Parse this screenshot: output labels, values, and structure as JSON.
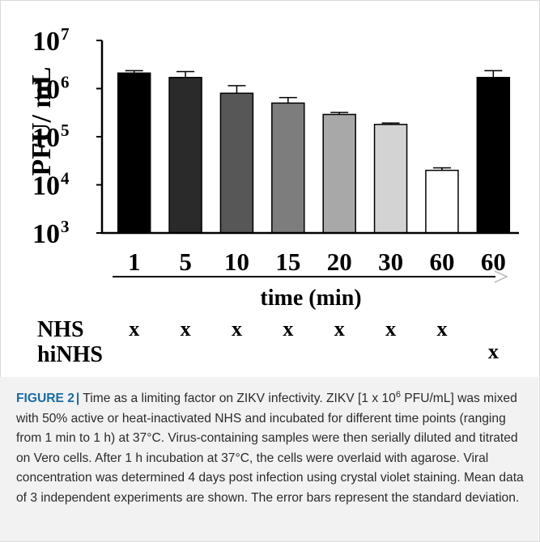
{
  "chart_data": {
    "type": "bar",
    "categories": [
      "1",
      "5",
      "10",
      "15",
      "20",
      "30",
      "60",
      "60"
    ],
    "values": [
      2100000,
      1700000,
      800000,
      500000,
      290000,
      180000,
      20000,
      1700000
    ],
    "errors": [
      250000,
      550000,
      350000,
      150000,
      30000,
      12000,
      2500,
      650000
    ],
    "bar_colors": [
      "#000000",
      "#2a2a2a",
      "#575757",
      "#7d7d7d",
      "#a8a8a8",
      "#d3d3d3",
      "#ffffff",
      "#000000"
    ],
    "scale": "log",
    "ylim": [
      1000,
      10000000
    ],
    "ylabel": "PFU/ mL",
    "xlabel": "time (min)",
    "yticks": [
      {
        "base": "10",
        "exp": "7"
      },
      {
        "base": "10",
        "exp": "6"
      },
      {
        "base": "10",
        "exp": "5"
      },
      {
        "base": "10",
        "exp": "4"
      },
      {
        "base": "10",
        "exp": "3"
      }
    ],
    "grid": false,
    "condition_rows": [
      {
        "label": "NHS",
        "marks": [
          "x",
          "x",
          "x",
          "x",
          "x",
          "x",
          "x",
          ""
        ]
      },
      {
        "label": "hiNHS",
        "marks": [
          "",
          "",
          "",
          "",
          "",
          "",
          "",
          "x"
        ]
      }
    ]
  },
  "caption": {
    "figure_label": "FIGURE 2",
    "separator": "|",
    "part1": "Time as a limiting factor on ZIKV infectivity. ZIKV [1 x 10",
    "sup": "6",
    "part2": " PFU/mL] was mixed with 50% active or heat-inactivated NHS and incubated for different time points (ranging from 1 min to 1 h) at 37°C. Virus-containing samples were then serially diluted and titrated on Vero cells. After 1 h incubation at 37°C, the cells were overlaid with agarose. Viral concentration was determined 4 days post infection using crystal violet staining. Mean data of 3 independent experiments are shown. The error bars represent the standard deviation."
  }
}
